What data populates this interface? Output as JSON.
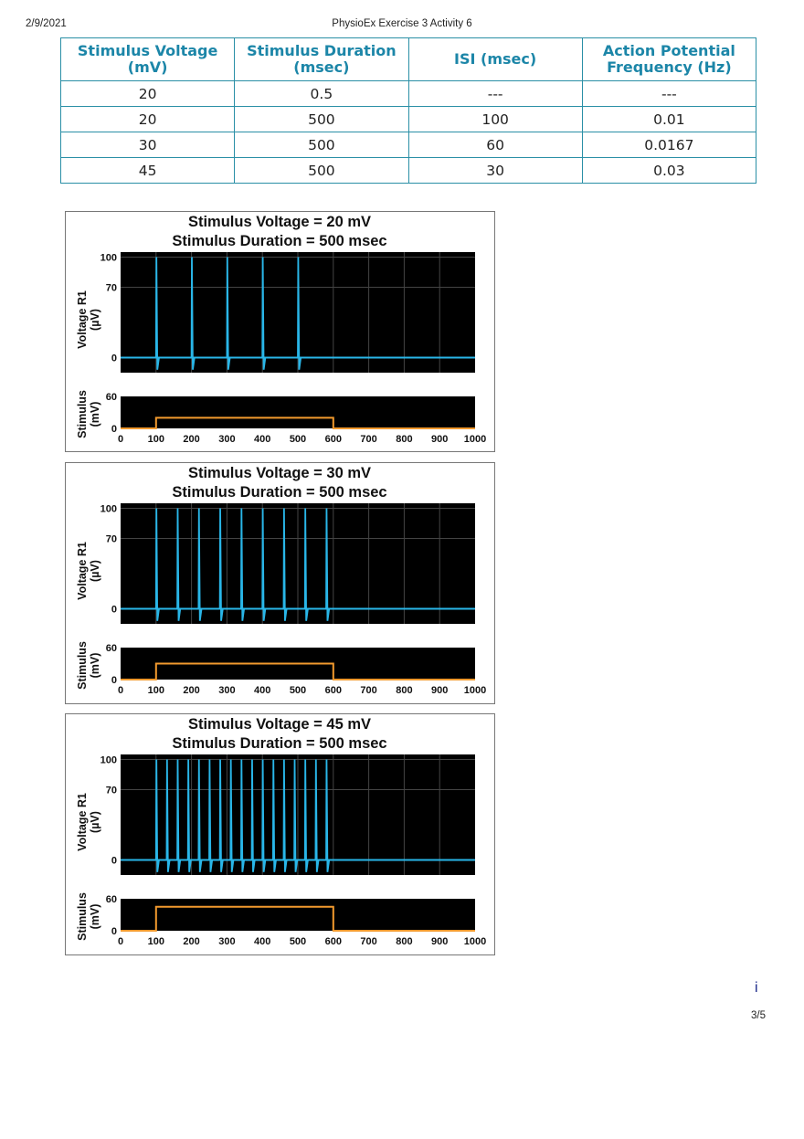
{
  "header": {
    "date": "2/9/2021",
    "title": "PhysioEx Exercise 3 Activity 6"
  },
  "table": {
    "columns": [
      "Stimulus Voltage (mV)",
      "Stimulus Duration (msec)",
      "ISI (msec)",
      "Action Potential Frequency (Hz)"
    ],
    "rows": [
      [
        "20",
        "0.5",
        "---",
        "---"
      ],
      [
        "20",
        "500",
        "100",
        "0.01"
      ],
      [
        "30",
        "500",
        "60",
        "0.0167"
      ],
      [
        "45",
        "500",
        "30",
        "0.03"
      ]
    ]
  },
  "chart_data": [
    {
      "type": "line",
      "title": "Stimulus Voltage = 20 mV",
      "subtitle": "Stimulus Duration = 500 msec",
      "ylabel": "Voltage R1 (µV)",
      "stim_ylabel": "Stimulus (mV)",
      "xlim": [
        0,
        1000
      ],
      "ylim": [
        -15,
        105
      ],
      "yticks": [
        0,
        70,
        100
      ],
      "stim_ylim": [
        0,
        60
      ],
      "stim_yticks": [
        0,
        60
      ],
      "xticks": [
        0,
        100,
        200,
        300,
        400,
        500,
        600,
        700,
        800,
        900,
        1000
      ],
      "spike_times_ms": [
        100,
        200,
        300,
        400,
        500
      ],
      "stimulus": {
        "start_ms": 100,
        "end_ms": 600,
        "amplitude_mV": 20
      },
      "grid": true,
      "colors": {
        "response": "#29b6e8",
        "stimulus": "#f29a2e",
        "background": "#000000"
      }
    },
    {
      "type": "line",
      "title": "Stimulus Voltage = 30 mV",
      "subtitle": "Stimulus Duration = 500 msec",
      "ylabel": "Voltage R1 (µV)",
      "stim_ylabel": "Stimulus (mV)",
      "xlim": [
        0,
        1000
      ],
      "ylim": [
        -15,
        105
      ],
      "yticks": [
        0,
        70,
        100
      ],
      "stim_ylim": [
        0,
        60
      ],
      "stim_yticks": [
        0,
        60
      ],
      "xticks": [
        0,
        100,
        200,
        300,
        400,
        500,
        600,
        700,
        800,
        900,
        1000
      ],
      "spike_times_ms": [
        100,
        160,
        220,
        280,
        340,
        400,
        460,
        520,
        580
      ],
      "stimulus": {
        "start_ms": 100,
        "end_ms": 600,
        "amplitude_mV": 30
      },
      "grid": true,
      "colors": {
        "response": "#29b6e8",
        "stimulus": "#f29a2e",
        "background": "#000000"
      }
    },
    {
      "type": "line",
      "title": "Stimulus Voltage = 45 mV",
      "subtitle": "Stimulus Duration = 500 msec",
      "ylabel": "Voltage R1 (µV)",
      "stim_ylabel": "Stimulus (mV)",
      "xlim": [
        0,
        1000
      ],
      "ylim": [
        -15,
        105
      ],
      "yticks": [
        0,
        70,
        100
      ],
      "stim_ylim": [
        0,
        60
      ],
      "stim_yticks": [
        0,
        60
      ],
      "xticks": [
        0,
        100,
        200,
        300,
        400,
        500,
        600,
        700,
        800,
        900,
        1000
      ],
      "spike_times_ms": [
        100,
        130,
        160,
        190,
        220,
        250,
        280,
        310,
        340,
        370,
        400,
        430,
        460,
        490,
        520,
        550,
        580
      ],
      "stimulus": {
        "start_ms": 100,
        "end_ms": 600,
        "amplitude_mV": 45
      },
      "grid": true,
      "colors": {
        "response": "#29b6e8",
        "stimulus": "#f29a2e",
        "background": "#000000"
      }
    }
  ],
  "footer": {
    "info_mark": "i",
    "page": "3/5"
  }
}
